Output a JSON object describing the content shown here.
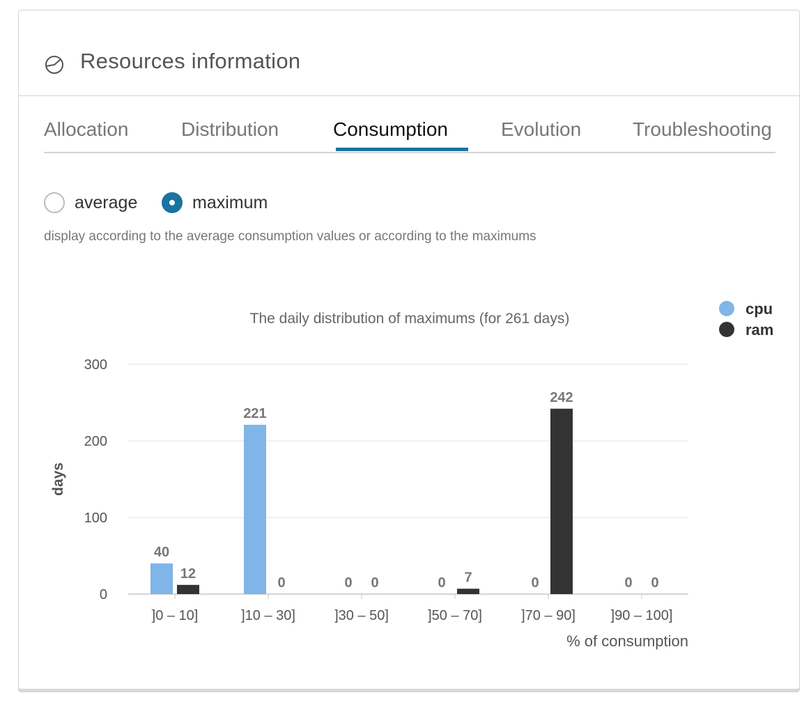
{
  "header": {
    "title": "Resources information",
    "icon": "pie-chart-icon"
  },
  "tabs": [
    {
      "label": "Allocation",
      "active": false
    },
    {
      "label": "Distribution",
      "active": false
    },
    {
      "label": "Consumption",
      "active": true
    },
    {
      "label": "Evolution",
      "active": false
    },
    {
      "label": "Troubleshooting",
      "active": false
    }
  ],
  "mode": {
    "options": [
      {
        "label": "average",
        "selected": false
      },
      {
        "label": "maximum",
        "selected": true
      }
    ],
    "hint": "display according to the average consumption values or according to the maximums"
  },
  "colors": {
    "accent": "#1a73a0",
    "cpu": "#7fb5e8",
    "ram": "#333333"
  },
  "chart_data": {
    "type": "bar",
    "title": "The daily distribution of maximums (for 261 days)",
    "xlabel": "% of consumption",
    "ylabel": "days",
    "categories": [
      "]0 – 10]",
      "]10 – 30]",
      "]30 – 50]",
      "]50 – 70]",
      "]70 – 90]",
      "]90 – 100]"
    ],
    "series": [
      {
        "name": "cpu",
        "color": "#7fb5e8",
        "values": [
          40,
          221,
          0,
          0,
          0,
          0
        ]
      },
      {
        "name": "ram",
        "color": "#333333",
        "values": [
          12,
          0,
          0,
          7,
          242,
          0
        ]
      }
    ],
    "ylim": [
      0,
      300
    ],
    "yticks": [
      0,
      100,
      200,
      300
    ],
    "grid": true,
    "legend_position": "top-right",
    "data_labels": true
  }
}
